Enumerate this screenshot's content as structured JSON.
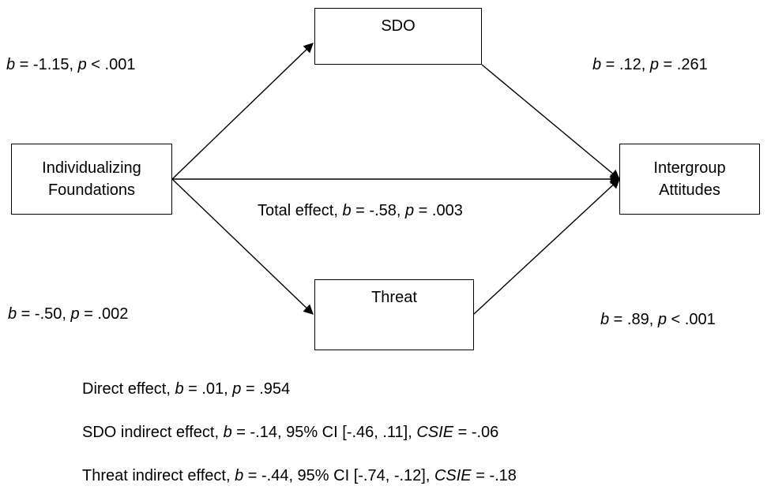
{
  "nodes": {
    "predictor": {
      "line1": "Individualizing",
      "line2": "Foundations"
    },
    "mediator_sdo": {
      "label": "SDO"
    },
    "mediator_threat": {
      "label": "Threat"
    },
    "outcome": {
      "line1": "Intergroup",
      "line2": "Attitudes"
    }
  },
  "paths": {
    "a_sdo": {
      "b_sym": "b",
      "b_val": " = -1.15, ",
      "p_sym": "p",
      "p_val": " < .001"
    },
    "b_sdo": {
      "b_sym": "b",
      "b_val": " = .12, ",
      "p_sym": "p",
      "p_val": " = .261"
    },
    "a_threat": {
      "b_sym": "b",
      "b_val": " = -.50, ",
      "p_sym": "p",
      "p_val": " = .002"
    },
    "b_threat": {
      "b_sym": "b",
      "b_val": " = .89, ",
      "p_sym": "p",
      "p_val": " < .001"
    },
    "total": {
      "prefix": "Total effect, ",
      "b_sym": "b",
      "b_val": " = -.58, ",
      "p_sym": "p",
      "p_val": " = .003"
    }
  },
  "notes": {
    "direct": {
      "prefix": "Direct effect, ",
      "b_sym": "b",
      "b_val": " = .01, ",
      "p_sym": "p",
      "p_val": " = .954"
    },
    "sdo_indirect": {
      "prefix": "SDO indirect effect, ",
      "b_sym": "b",
      "mid": " = -.14, 95% CI [-.46, .11], ",
      "csie_sym": "CSIE",
      "csie_val": " = -.06"
    },
    "threat_indirect": {
      "prefix": "Threat indirect effect, ",
      "b_sym": "b",
      "mid": " = -.44, 95% CI [-.74, -.12], ",
      "csie_sym": "CSIE",
      "csie_val": " = -.18"
    }
  }
}
